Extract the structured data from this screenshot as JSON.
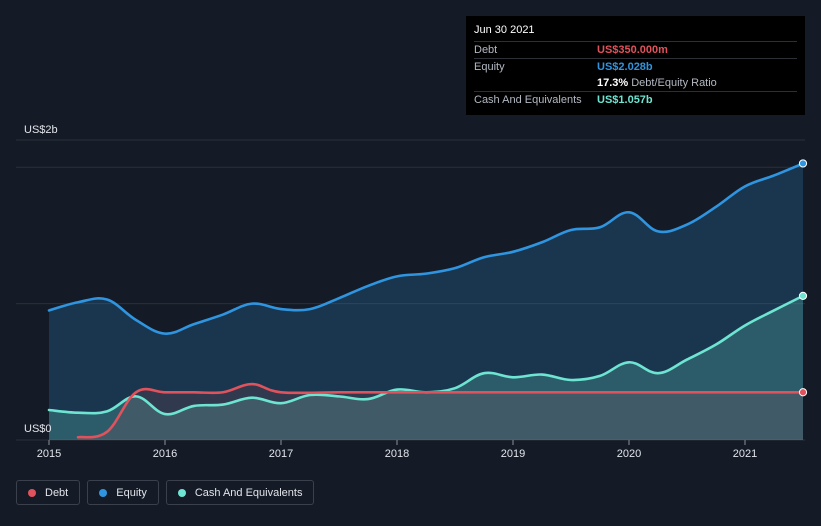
{
  "tooltip": {
    "date": "Jun 30 2021",
    "rows": [
      {
        "label": "Debt",
        "value": "US$350.000m",
        "color": "#e0525c"
      },
      {
        "label": "Equity",
        "value": "US$2.028b",
        "color": "#2f95e0"
      }
    ],
    "ratio_value": "17.3%",
    "ratio_label": "Debt/Equity Ratio",
    "cash": {
      "label": "Cash And Equivalents",
      "value": "US$1.057b",
      "color": "#6ee5d2"
    }
  },
  "legend": [
    {
      "label": "Debt",
      "color": "#e0525c"
    },
    {
      "label": "Equity",
      "color": "#2f95e0"
    },
    {
      "label": "Cash And Equivalents",
      "color": "#6ee5d2"
    }
  ],
  "chart_data": {
    "type": "area",
    "y_unit_labels": {
      "top": "US$2b",
      "bottom": "US$0"
    },
    "ylim": [
      0,
      2.2
    ],
    "xlim": [
      2015.0,
      2021.5
    ],
    "x_ticks": [
      "2015",
      "2016",
      "2017",
      "2018",
      "2019",
      "2020",
      "2021"
    ],
    "grid": true,
    "series": [
      {
        "name": "Equity",
        "color": "#2f95e0",
        "points": [
          [
            2015.0,
            0.95
          ],
          [
            2015.25,
            1.01
          ],
          [
            2015.5,
            1.03
          ],
          [
            2015.75,
            0.88
          ],
          [
            2016.0,
            0.78
          ],
          [
            2016.25,
            0.85
          ],
          [
            2016.5,
            0.92
          ],
          [
            2016.75,
            1.0
          ],
          [
            2017.0,
            0.96
          ],
          [
            2017.25,
            0.96
          ],
          [
            2017.5,
            1.04
          ],
          [
            2017.75,
            1.13
          ],
          [
            2018.0,
            1.2
          ],
          [
            2018.25,
            1.22
          ],
          [
            2018.5,
            1.26
          ],
          [
            2018.75,
            1.34
          ],
          [
            2019.0,
            1.38
          ],
          [
            2019.25,
            1.45
          ],
          [
            2019.5,
            1.54
          ],
          [
            2019.75,
            1.56
          ],
          [
            2020.0,
            1.67
          ],
          [
            2020.25,
            1.53
          ],
          [
            2020.5,
            1.58
          ],
          [
            2020.75,
            1.71
          ],
          [
            2021.0,
            1.86
          ],
          [
            2021.25,
            1.94
          ],
          [
            2021.5,
            2.028
          ]
        ]
      },
      {
        "name": "Cash And Equivalents",
        "color": "#6ee5d2",
        "points": [
          [
            2015.0,
            0.22
          ],
          [
            2015.25,
            0.2
          ],
          [
            2015.5,
            0.21
          ],
          [
            2015.75,
            0.32
          ],
          [
            2016.0,
            0.19
          ],
          [
            2016.25,
            0.25
          ],
          [
            2016.5,
            0.26
          ],
          [
            2016.75,
            0.31
          ],
          [
            2017.0,
            0.27
          ],
          [
            2017.25,
            0.33
          ],
          [
            2017.5,
            0.32
          ],
          [
            2017.75,
            0.3
          ],
          [
            2018.0,
            0.37
          ],
          [
            2018.25,
            0.35
          ],
          [
            2018.5,
            0.38
          ],
          [
            2018.75,
            0.49
          ],
          [
            2019.0,
            0.46
          ],
          [
            2019.25,
            0.48
          ],
          [
            2019.5,
            0.44
          ],
          [
            2019.75,
            0.47
          ],
          [
            2020.0,
            0.57
          ],
          [
            2020.25,
            0.49
          ],
          [
            2020.5,
            0.59
          ],
          [
            2020.75,
            0.7
          ],
          [
            2021.0,
            0.84
          ],
          [
            2021.25,
            0.95
          ],
          [
            2021.5,
            1.057
          ]
        ]
      },
      {
        "name": "Debt",
        "color": "#e0525c",
        "points": [
          [
            2015.25,
            0.02
          ],
          [
            2015.5,
            0.06
          ],
          [
            2015.75,
            0.35
          ],
          [
            2016.0,
            0.35
          ],
          [
            2016.25,
            0.35
          ],
          [
            2016.5,
            0.35
          ],
          [
            2016.75,
            0.41
          ],
          [
            2017.0,
            0.35
          ],
          [
            2017.5,
            0.35
          ],
          [
            2018.0,
            0.35
          ],
          [
            2018.5,
            0.35
          ],
          [
            2019.0,
            0.35
          ],
          [
            2019.5,
            0.35
          ],
          [
            2020.0,
            0.35
          ],
          [
            2020.5,
            0.35
          ],
          [
            2021.0,
            0.35
          ],
          [
            2021.5,
            0.35
          ]
        ]
      }
    ]
  }
}
